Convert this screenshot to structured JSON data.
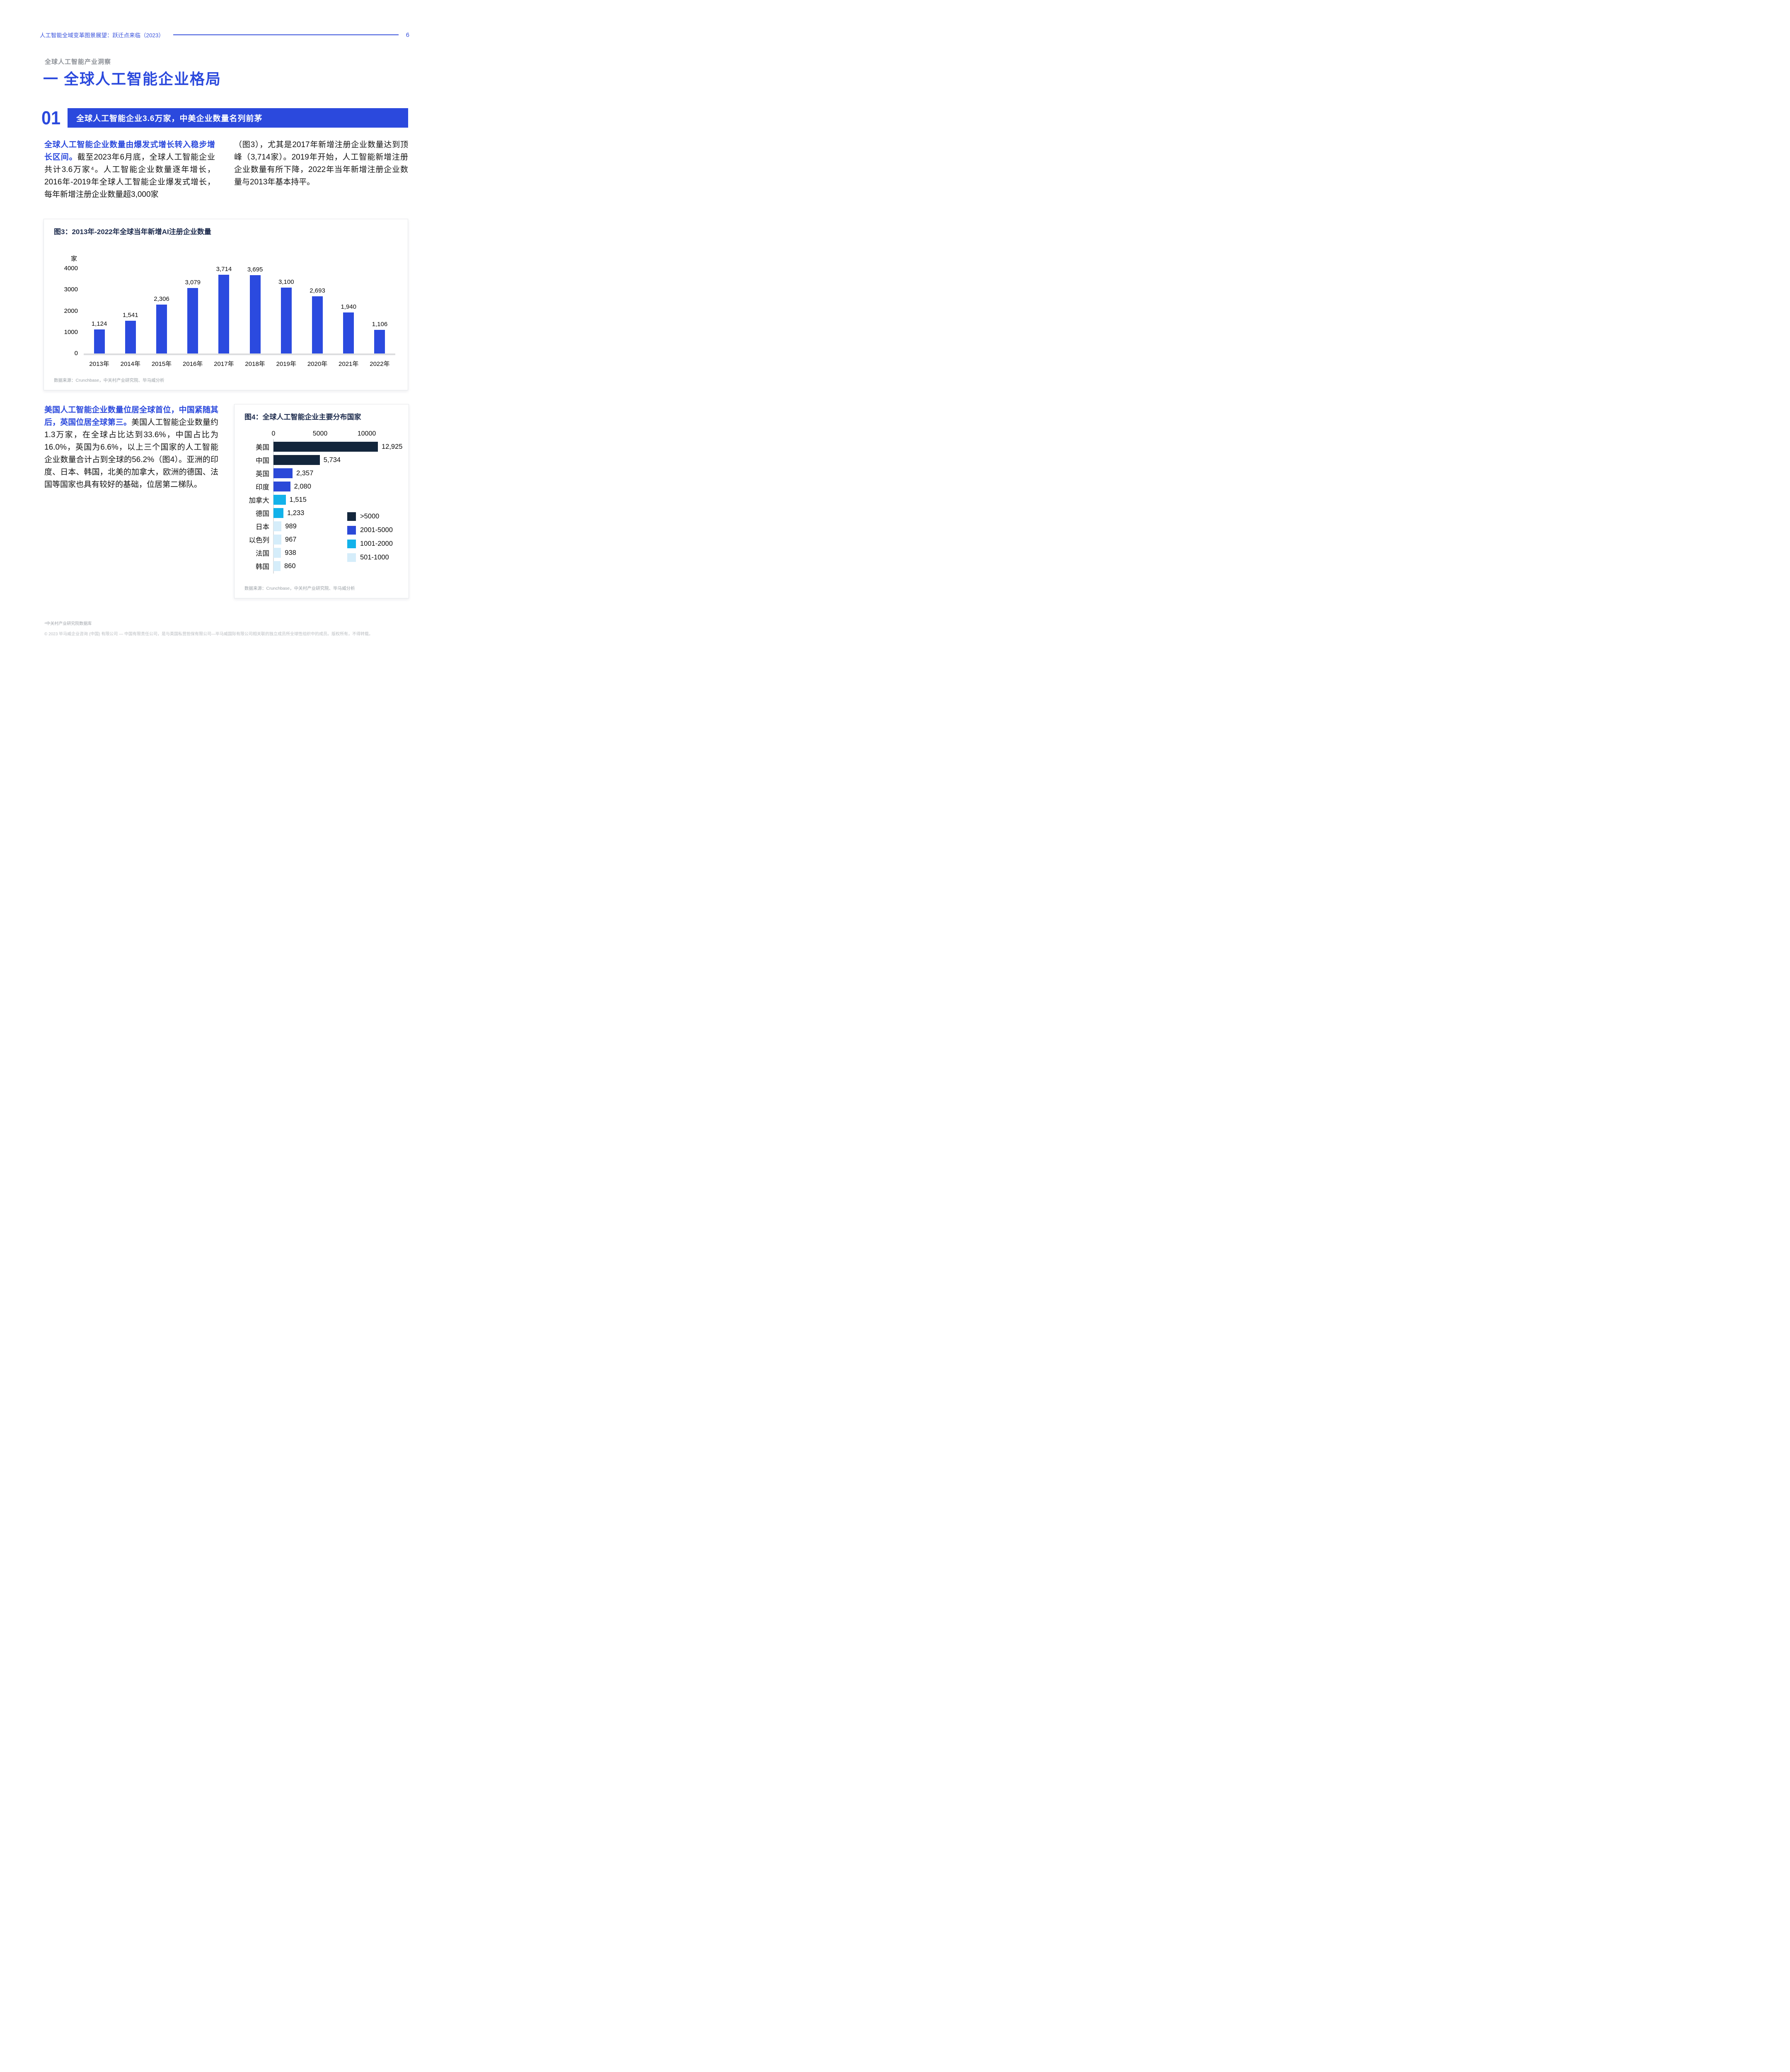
{
  "header": {
    "title": "人工智能全域变革图景展望：跃迁点来临（2023）",
    "page_number": "6"
  },
  "eyebrow": "全球人工智能产业洞察",
  "section_title": "一  全球人工智能企业格局",
  "banner": {
    "number": "01",
    "text": "全球人工智能企业3.6万家，中美企业数量名列前茅"
  },
  "paragraphs": {
    "para1": {
      "lead": "全球人工智能企业数量由爆发式增长转入稳步增长区间。",
      "body": "截至2023年6月底，全球人工智能企业共计3.6万家⁴。人工智能企业数量逐年增长，2016年-2019年全球人工智能企业爆发式增长，每年新增注册企业数量超3,000家",
      "right": "（图3），尤其是2017年新增注册企业数量达到顶峰（3,714家）。2019年开始，人工智能新增注册企业数量有所下降，2022年当年新增注册企业数量与2013年基本持平。"
    },
    "para2": {
      "lead": "美国人工智能企业数量位居全球首位，中国紧随其后，英国位居全球第三。",
      "body": "美国人工智能企业数量约1.3万家，在全球占比达到33.6%，中国占比为16.0%，英国为6.6%，以上三个国家的人工智能企业数量合计占到全球的56.2%（图4）。亚洲的印度、日本、韩国，北美的加拿大，欧洲的德国、法国等国家也具有较好的基础，位居第二梯队。"
    }
  },
  "chart_data": [
    {
      "type": "bar",
      "title": "图3：2013年-2022年全球当年新增AI注册企业数量",
      "unit": "家",
      "categories": [
        "2013年",
        "2014年",
        "2015年",
        "2016年",
        "2017年",
        "2018年",
        "2019年",
        "2020年",
        "2021年",
        "2022年"
      ],
      "values": [
        1124,
        1541,
        2306,
        3079,
        3714,
        3695,
        3100,
        2693,
        1940,
        1106
      ],
      "value_labels": [
        "1,124",
        "1,541",
        "2,306",
        "3,079",
        "3,714",
        "3,695",
        "3,100",
        "2,693",
        "1,940",
        "1,106"
      ],
      "ylim": [
        0,
        4000
      ],
      "yticks": [
        0,
        1000,
        2000,
        3000,
        4000
      ],
      "bar_color": "#2b4adf",
      "grid": "off",
      "source": "数据来源：Crunchbase，中关村产业研究院、毕马威分析"
    },
    {
      "type": "bar-horizontal",
      "title": "图4：全球人工智能企业主要分布国家",
      "categories": [
        "美国",
        "中国",
        "英国",
        "印度",
        "加拿大",
        "德国",
        "日本",
        "以色列",
        "法国",
        "韩国"
      ],
      "values": [
        12925,
        5734,
        2357,
        2080,
        1515,
        1233,
        989,
        967,
        938,
        860
      ],
      "value_labels": [
        "12,925",
        "5,734",
        "2,357",
        "2,080",
        "1,515",
        "1,233",
        "989",
        "967",
        "938",
        "860"
      ],
      "bar_colors": [
        "#13263c",
        "#13263c",
        "#2b49d8",
        "#2b49d8",
        "#12b2ea",
        "#12b2ea",
        "#d5edfa",
        "#d5edfa",
        "#d5edfa",
        "#d5edfa"
      ],
      "xticks": [
        0,
        5000,
        10000
      ],
      "xlim": [
        0,
        13000
      ],
      "legend_position": "right-bottom",
      "legend": [
        {
          "label": ">5000",
          "color": "#13263c"
        },
        {
          "label": "2001-5000",
          "color": "#2b49d8"
        },
        {
          "label": "1001-2000",
          "color": "#12b2ea"
        },
        {
          "label": "501-1000",
          "color": "#d5edfa"
        }
      ],
      "source": "数据来源：Crunchbase，中关村产业研究院、毕马威分析"
    }
  ],
  "footnote": "⁴中关村产业研究院数据库",
  "copyright": "© 2023 毕马威企业咨询 (中国) 有限公司 — 中国有限责任公司，是与英国私营担保有限公司—毕马威国际有限公司相关联的独立成员所全球性组织中的成员。版权所有，不得转载。",
  "colors": {
    "accent_blue": "#2b49dd",
    "chart_bar_blue": "#2b4adf",
    "dark_navy": "#13263c",
    "cyan": "#12b2ea",
    "pale_blue": "#d5edfa",
    "figure_title_navy": "#1e2c4e"
  }
}
